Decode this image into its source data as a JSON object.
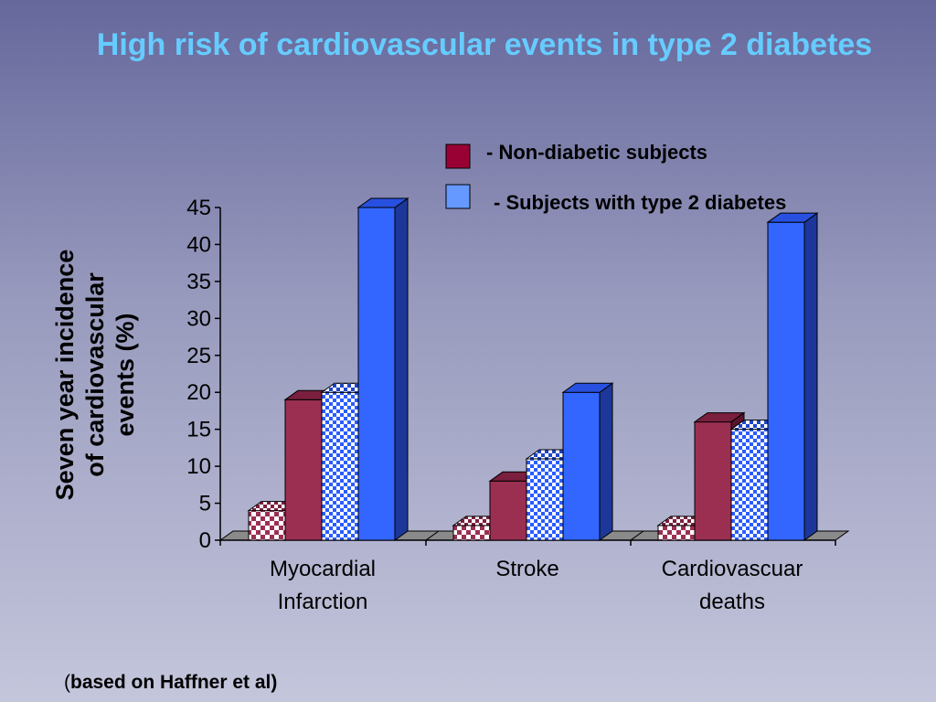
{
  "slide": {
    "title": "High risk of cardiovascular events in type 2 diabetes",
    "footnote_open": "(",
    "footnote_text": "based on Haffner et al)"
  },
  "chart_data": {
    "type": "bar",
    "title": "",
    "ylabel_lines": [
      "Seven year incidence",
      "of cardiovascular",
      "events (%)"
    ],
    "xlabel": "",
    "ylim": [
      0,
      45
    ],
    "yticks": [
      0,
      5,
      10,
      15,
      20,
      25,
      30,
      35,
      40,
      45
    ],
    "categories": [
      [
        "Myocardial",
        "Infarction"
      ],
      [
        "Stroke"
      ],
      [
        "Cardiovascuar",
        "deaths"
      ]
    ],
    "series": [
      {
        "name": "- Non-diabetic subjects",
        "pattern": "checker",
        "color": "#9b2f52"
      },
      {
        "name": "",
        "pattern": "solid",
        "color": "#9b2f52"
      },
      {
        "name": "",
        "pattern": "checker",
        "color": "#3366ff"
      },
      {
        "name": "- Subjects with type 2 diabetes",
        "pattern": "solid",
        "color": "#3366ff"
      }
    ],
    "values": [
      [
        4,
        19,
        20,
        45
      ],
      [
        2,
        8,
        11,
        20
      ],
      [
        2,
        16,
        15,
        43
      ]
    ],
    "legend": [
      {
        "label": "- Non-diabetic subjects",
        "color": "#990033"
      },
      {
        "label": "- Subjects with type 2 diabetes",
        "color": "#6699ff"
      }
    ],
    "legend_position": "top-right",
    "grid": false
  }
}
